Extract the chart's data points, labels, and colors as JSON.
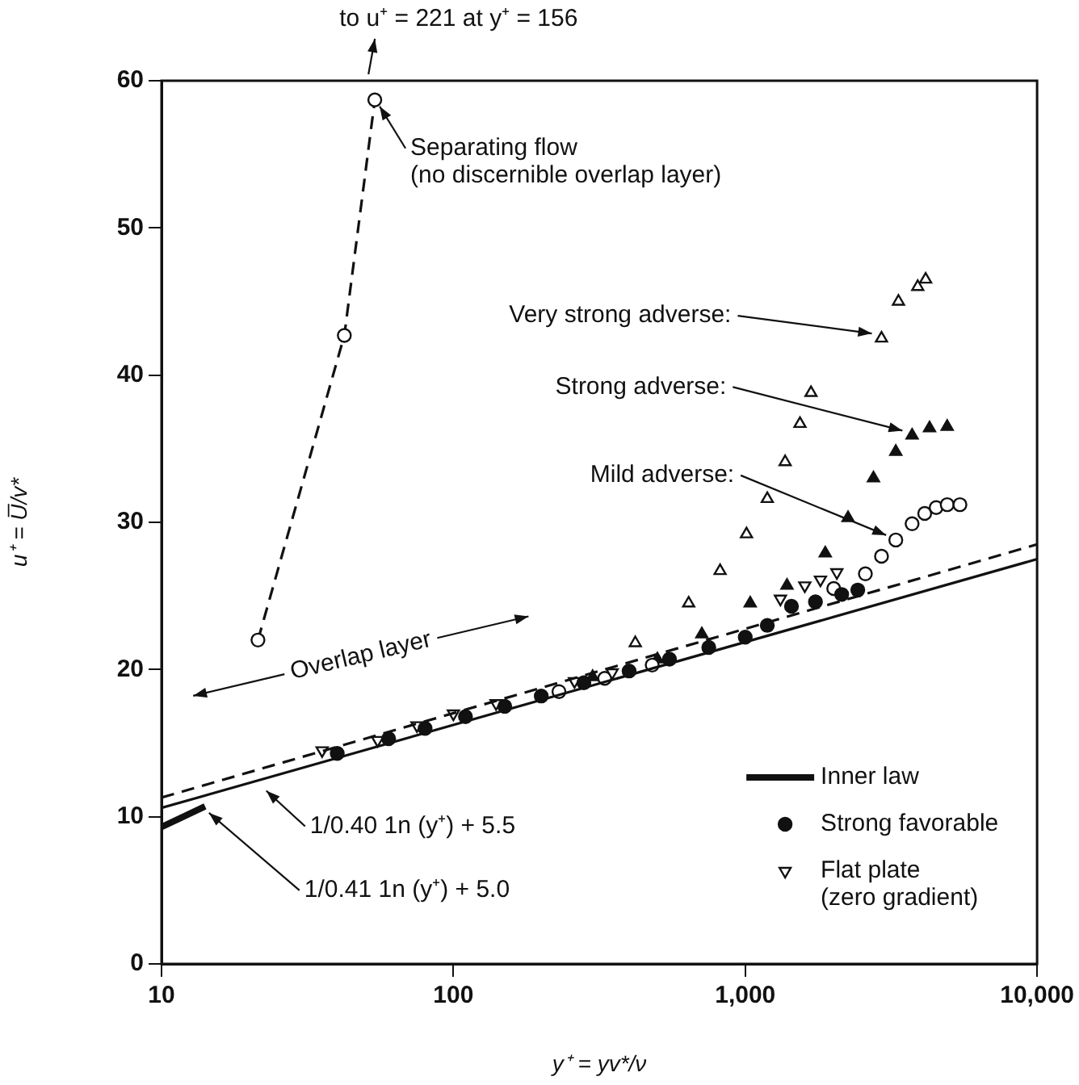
{
  "chart_data": {
    "type": "scatter",
    "xlabel": "y⁺ = yv*/ν",
    "ylabel": "u⁺ = U̅/v*",
    "log": "x",
    "grid": false,
    "legend": "bottom right",
    "xlim": [
      10,
      10000
    ],
    "xticks": [
      10,
      100,
      {
        "value": 1000,
        "label": "1,000"
      },
      {
        "value": 10000,
        "label": "10,000"
      }
    ],
    "ylim": [
      0,
      60
    ],
    "yticks": [
      0,
      10,
      20,
      30,
      40,
      50,
      60
    ],
    "series": [
      {
        "type": "line",
        "color": "#111111",
        "line_style": "solid",
        "marker": "none",
        "x": [
          10,
          10000
        ],
        "values": [
          10.6,
          27.5
        ]
      },
      {
        "type": "line",
        "color": "#111111",
        "line_style": "dashed",
        "marker": "none",
        "x": [
          10,
          10000
        ],
        "values": [
          11.3,
          28.5
        ]
      },
      {
        "name": "Inner law",
        "type": "line",
        "color": "#111111",
        "line_style": "solid",
        "marker": "none",
        "x": [
          10,
          14.1
        ],
        "values": [
          9.3,
          10.7
        ]
      },
      {
        "type": "line",
        "color": "#111111",
        "line_style": "dashed",
        "marker": "circle-open",
        "x": [
          21.4,
          42.3,
          53.8
        ],
        "values": [
          22.0,
          42.7,
          58.7
        ]
      },
      {
        "name": "Strong favorable",
        "type": "scatter",
        "color": "#111111",
        "marker": "circle",
        "x": [
          40,
          60,
          80,
          110,
          150,
          200,
          280,
          400,
          550,
          750,
          1000,
          1190,
          1440,
          1740,
          2140,
          2430
        ],
        "values": [
          14.3,
          15.3,
          16.0,
          16.8,
          17.5,
          18.2,
          19.1,
          19.9,
          20.7,
          21.5,
          22.2,
          23.0,
          24.3,
          24.6,
          25.1,
          25.4
        ]
      },
      {
        "name": "Flat plate\n(zero gradient)",
        "type": "scatter",
        "color": "#111111",
        "marker": "triangle-down-open",
        "x": [
          35.5,
          55,
          75,
          100,
          140,
          260,
          350,
          1320,
          1600,
          1810,
          2060
        ],
        "values": [
          14.5,
          15.2,
          16.2,
          17.0,
          17.7,
          19.2,
          19.8,
          24.8,
          25.7,
          26.1,
          26.6
        ]
      },
      {
        "type": "scatter",
        "color": "#111111",
        "marker": "circle-open",
        "x": [
          230,
          330,
          480,
          2010,
          2580,
          2930,
          3280,
          3730,
          4120,
          4510,
          4920,
          5440
        ],
        "values": [
          18.5,
          19.4,
          20.3,
          25.5,
          26.5,
          27.7,
          28.8,
          29.9,
          30.6,
          31.0,
          31.2,
          31.2
        ]
      },
      {
        "type": "scatter",
        "color": "#111111",
        "marker": "triangle",
        "x": [
          300,
          500,
          710,
          1040,
          1390,
          1880,
          2250,
          2750,
          3280,
          3730,
          4280,
          4920
        ],
        "values": [
          19.5,
          20.7,
          22.4,
          24.5,
          25.7,
          27.9,
          30.3,
          33.0,
          34.8,
          35.9,
          36.4,
          36.5
        ]
      },
      {
        "type": "scatter",
        "color": "#111111",
        "marker": "triangle-open",
        "x": [
          420,
          640,
          820,
          1010,
          1190,
          1370,
          1540,
          1680,
          2930,
          3350,
          3900,
          4150
        ],
        "values": [
          21.8,
          24.5,
          26.7,
          29.2,
          31.6,
          34.1,
          36.7,
          38.8,
          42.5,
          45.0,
          46.0,
          46.5
        ]
      }
    ],
    "annotations": [
      "to u⁺ = 221 at y⁺ = 156",
      {
        "text": "Separating flow\n(no discernible overlap layer)",
        "x": 53.8,
        "y": 58.7
      },
      {
        "text": "Very strong adverse:",
        "x": 2930,
        "y": 42.5
      },
      {
        "text": "Strong adverse:",
        "x": 3730,
        "y": 35.9
      },
      {
        "text": "Mild adverse:",
        "x": 3280,
        "y": 28.8
      },
      "Overlap layer",
      {
        "text": "1/0.40 1n (y⁺) + 5.5",
        "x": 22,
        "y": 12.2
      },
      {
        "text": "1/0.41 1n (y⁺) + 5.0",
        "x": 14,
        "y": 10.7
      }
    ]
  }
}
